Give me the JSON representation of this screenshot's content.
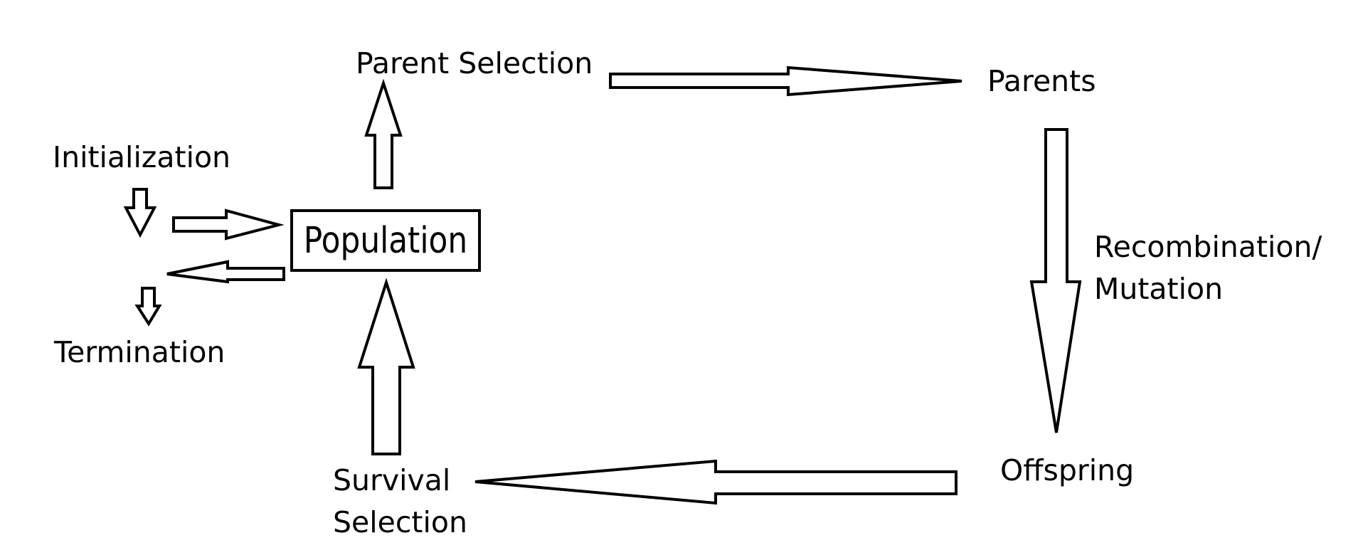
{
  "nodes": {
    "population": "Population",
    "parent_selection": "Parent Selection",
    "parents": "Parents",
    "recombination_line1": "Recombination/",
    "recombination_line2": "Mutation",
    "offspring": "Offspring",
    "survival_line1": "Survival",
    "survival_line2": "Selection",
    "initialization": "Initialization",
    "termination": "Termination"
  }
}
